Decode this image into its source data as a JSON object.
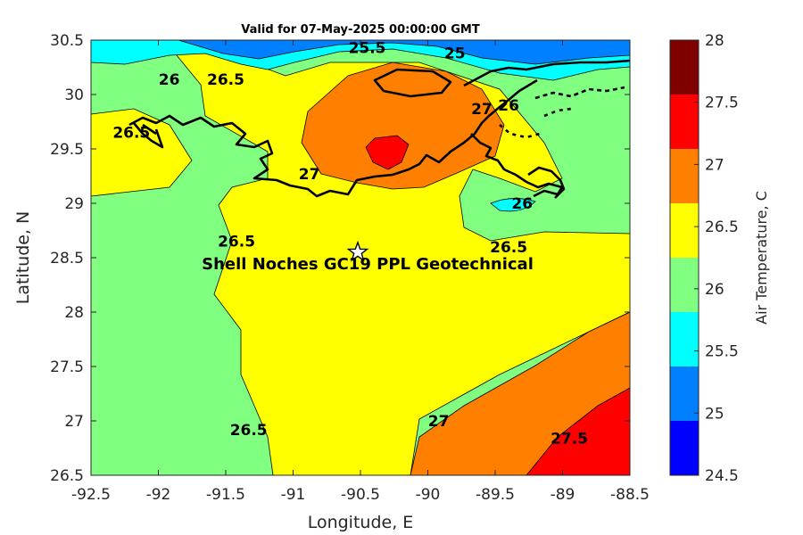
{
  "title": "Valid for 07-May-2025 00:00:00 GMT",
  "xlabel": "Longitude, E",
  "ylabel": "Latitude, N",
  "colorbar_label": "Air Temperature, C",
  "site": {
    "label": "Shell Noches   GC19 PPL  Geotechnical",
    "lon": -90.52,
    "lat": 28.55
  },
  "chart_data": {
    "type": "heatmap",
    "subtype": "filled-contour-map",
    "xlim": [
      -92.5,
      -88.5
    ],
    "ylim": [
      26.5,
      30.5
    ],
    "xticks": [
      "-92.5",
      "-92",
      "-91.5",
      "-91",
      "-90.5",
      "-90",
      "-89.5",
      "-89",
      "-88.5"
    ],
    "yticks": [
      "26.5",
      "27",
      "27.5",
      "28",
      "28.5",
      "29",
      "29.5",
      "30",
      "30.5"
    ],
    "colorbar": {
      "ticks": [
        "24.5",
        "25",
        "25.5",
        "26",
        "26.5",
        "27",
        "27.5",
        "28"
      ],
      "levels": [
        24.5,
        25,
        25.5,
        26,
        26.5,
        27,
        27.5,
        28
      ],
      "colors": [
        "#0000ff",
        "#0080ff",
        "#00ffff",
        "#80ff80",
        "#ffff00",
        "#ff8000",
        "#ff0000",
        "#800000"
      ]
    },
    "contour_labels": [
      {
        "text": "25.5",
        "lon": -90.45,
        "lat": 30.43
      },
      {
        "text": "25",
        "lon": -89.8,
        "lat": 30.38
      },
      {
        "text": "26",
        "lon": -91.92,
        "lat": 30.14
      },
      {
        "text": "26.5",
        "lon": -91.5,
        "lat": 30.14
      },
      {
        "text": "26.5",
        "lon": -92.2,
        "lat": 29.65
      },
      {
        "text": "27",
        "lon": -89.6,
        "lat": 29.87
      },
      {
        "text": "26",
        "lon": -89.4,
        "lat": 29.9
      },
      {
        "text": "27",
        "lon": -90.88,
        "lat": 29.27
      },
      {
        "text": "26",
        "lon": -89.3,
        "lat": 29.0
      },
      {
        "text": "26.5",
        "lon": -91.42,
        "lat": 28.65
      },
      {
        "text": "26.5",
        "lon": -89.4,
        "lat": 28.6
      },
      {
        "text": "26.5",
        "lon": -91.33,
        "lat": 26.92
      },
      {
        "text": "27",
        "lon": -89.92,
        "lat": 27.0
      },
      {
        "text": "27.5",
        "lon": -88.95,
        "lat": 26.84
      }
    ]
  }
}
